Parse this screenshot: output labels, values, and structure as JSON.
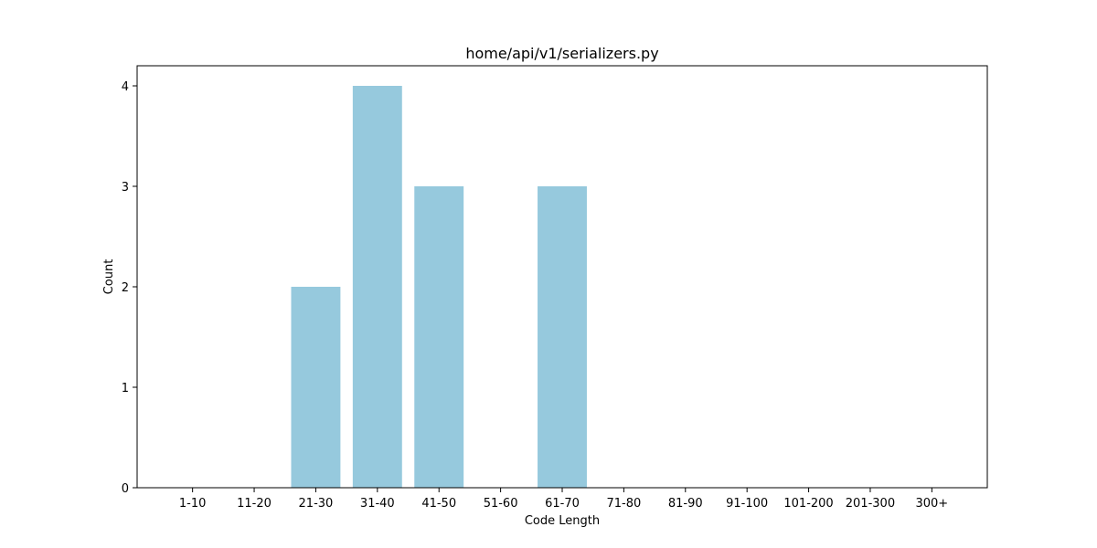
{
  "chart_data": {
    "type": "bar",
    "title": "home/api/v1/serializers.py",
    "xlabel": "Code Length",
    "ylabel": "Count",
    "categories": [
      "1-10",
      "11-20",
      "21-30",
      "31-40",
      "41-50",
      "51-60",
      "61-70",
      "71-80",
      "81-90",
      "91-100",
      "101-200",
      "201-300",
      "300+"
    ],
    "values": [
      0,
      0,
      2,
      4,
      3,
      0,
      3,
      0,
      0,
      0,
      0,
      0,
      0
    ],
    "ylim": [
      0,
      4.2
    ],
    "yticks": [
      0,
      1,
      2,
      3,
      4
    ],
    "bar_color": "#96c9dd",
    "grid": false,
    "legend": "none"
  }
}
